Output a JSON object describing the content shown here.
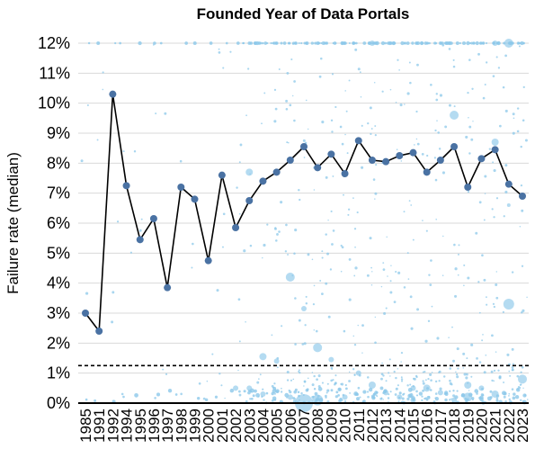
{
  "chart_data": {
    "type": "line",
    "title": "Founded Year of Data Portals",
    "xlabel": "",
    "ylabel": "Failure rate (median)",
    "categories": [
      "1985",
      "1991",
      "1992",
      "1994",
      "1995",
      "1996",
      "1997",
      "1998",
      "1999",
      "2000",
      "2001",
      "2002",
      "2003",
      "2004",
      "2005",
      "2006",
      "2007",
      "2008",
      "2009",
      "2010",
      "2011",
      "2012",
      "2013",
      "2014",
      "2015",
      "2016",
      "2017",
      "2018",
      "2019",
      "2020",
      "2021",
      "2022",
      "2023"
    ],
    "values": [
      3.0,
      2.4,
      10.3,
      7.25,
      5.45,
      6.15,
      3.85,
      7.2,
      6.8,
      4.75,
      7.6,
      5.85,
      6.75,
      7.4,
      7.7,
      8.1,
      8.55,
      7.85,
      8.3,
      7.65,
      8.75,
      8.1,
      8.05,
      8.25,
      8.35,
      7.7,
      8.1,
      8.55,
      7.2,
      8.15,
      8.45,
      7.3,
      6.9
    ],
    "yticks": [
      "0%",
      "1%",
      "2%",
      "3%",
      "4%",
      "5%",
      "6%",
      "7%",
      "8%",
      "9%",
      "10%",
      "11%",
      "12%"
    ],
    "ylim": [
      0,
      12
    ],
    "reference_line": 1.25,
    "grid": true,
    "colors": {
      "line": "#000000",
      "marker": "#4a72a3",
      "scatter": "#8cc8ea",
      "grid": "#d9d9d9"
    },
    "scatter_bubbles": [
      {
        "x": 16,
        "y": 0.0,
        "size": 10
      },
      {
        "x": 17,
        "y": 0.1,
        "size": 6
      },
      {
        "x": 28,
        "y": 0.2,
        "size": 5
      },
      {
        "x": 31,
        "y": 3.3,
        "size": 6
      },
      {
        "x": 31,
        "y": 12.0,
        "size": 5
      },
      {
        "x": 27,
        "y": 9.6,
        "size": 5
      },
      {
        "x": 15,
        "y": 4.2,
        "size": 5
      },
      {
        "x": 17,
        "y": 1.85,
        "size": 5
      },
      {
        "x": 13,
        "y": 1.55,
        "size": 4
      },
      {
        "x": 12,
        "y": 7.7,
        "size": 4
      },
      {
        "x": 32,
        "y": 0.8,
        "size": 5
      },
      {
        "x": 30,
        "y": 0.3,
        "size": 4
      },
      {
        "x": 30,
        "y": 8.7,
        "size": 4
      },
      {
        "x": 21,
        "y": 0.6,
        "size": 4
      },
      {
        "x": 28,
        "y": 0.6,
        "size": 4
      },
      {
        "x": 25,
        "y": 0.5,
        "size": 4
      },
      {
        "x": 22,
        "y": 0.35,
        "size": 3
      },
      {
        "x": 14,
        "y": 1.4,
        "size": 3
      },
      {
        "x": 19,
        "y": 0.2,
        "size": 3
      },
      {
        "x": 24,
        "y": 0.5,
        "size": 3
      },
      {
        "x": 26,
        "y": 0.35,
        "size": 3
      },
      {
        "x": 23,
        "y": 0.2,
        "size": 3
      },
      {
        "x": 29,
        "y": 0.5,
        "size": 3
      },
      {
        "x": 18,
        "y": 1.45,
        "size": 3
      },
      {
        "x": 16,
        "y": 3.15,
        "size": 3
      },
      {
        "x": 20,
        "y": 1.0,
        "size": 3
      },
      {
        "x": 13,
        "y": 0.3,
        "size": 3
      },
      {
        "x": 15,
        "y": 0.2,
        "size": 3
      },
      {
        "x": 12,
        "y": 0.5,
        "size": 3
      },
      {
        "x": 11,
        "y": 0.5,
        "size": 3
      },
      {
        "x": 21,
        "y": 12.0,
        "size": 3
      },
      {
        "x": 30,
        "y": 12.0,
        "size": 3
      },
      {
        "x": 14,
        "y": 12.0,
        "size": 2
      },
      {
        "x": 17,
        "y": 12.0,
        "size": 2
      },
      {
        "x": 26,
        "y": 12.0,
        "size": 2
      },
      {
        "x": 31,
        "y": 6.6,
        "size": 2
      },
      {
        "x": 24,
        "y": 0.1,
        "size": 3
      },
      {
        "x": 27,
        "y": 0.1,
        "size": 3
      }
    ]
  }
}
